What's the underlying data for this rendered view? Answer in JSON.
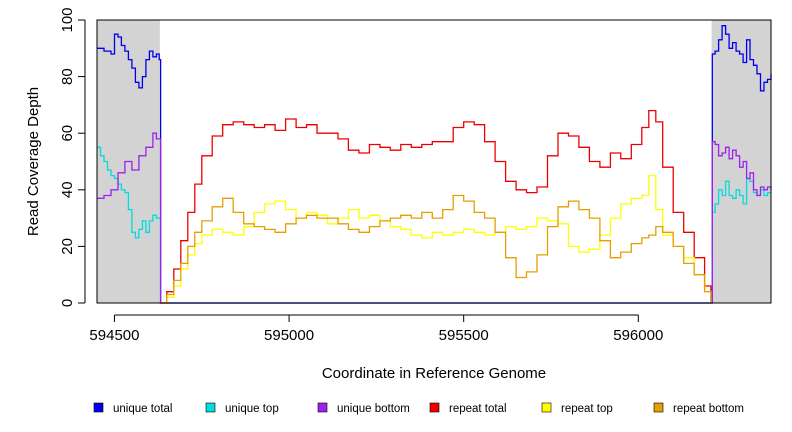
{
  "chart_data": {
    "type": "line",
    "title": "",
    "xlabel": "Coordinate in Reference Genome",
    "ylabel": "Read Coverage Depth",
    "xlim": [
      594450,
      596380
    ],
    "ylim": [
      0,
      100
    ],
    "x_ticks": [
      594500,
      595000,
      595500,
      596000
    ],
    "x_tick_labels": [
      "594500",
      "595000",
      "595500",
      "596000"
    ],
    "y_ticks": [
      0,
      20,
      40,
      60,
      80,
      100
    ],
    "y_tick_labels": [
      "0",
      "20",
      "40",
      "60",
      "80",
      "100"
    ],
    "shaded_regions": [
      [
        594450,
        594630
      ],
      [
        596210,
        596380
      ]
    ],
    "legend_position": "bottom",
    "series": [
      {
        "name": "unique total",
        "color": "#0000ee",
        "x": [
          594450,
          594470,
          594490,
          594500,
          594510,
          594520,
          594530,
          594540,
          594550,
          594560,
          594570,
          594580,
          594590,
          594600,
          594610,
          594620,
          594628,
          594632,
          596208,
          596212,
          596220,
          596230,
          596240,
          596250,
          596260,
          596270,
          596280,
          596290,
          596300,
          596310,
          596320,
          596330,
          596340,
          596350,
          596360,
          596370,
          596380
        ],
        "values": [
          90,
          89,
          88,
          95,
          94,
          91,
          89,
          86,
          83,
          78,
          76,
          80,
          86,
          89,
          87,
          88,
          86,
          0,
          0,
          88,
          89,
          93,
          98,
          95,
          90,
          92,
          89,
          88,
          85,
          93,
          86,
          84,
          81,
          75,
          78,
          79,
          81
        ]
      },
      {
        "name": "unique top",
        "color": "#00dddd",
        "x": [
          594450,
          594460,
          594470,
          594480,
          594490,
          594500,
          594510,
          594520,
          594530,
          594540,
          594550,
          594560,
          594570,
          594580,
          594590,
          594600,
          594610,
          594620,
          594628,
          594632,
          596208,
          596212,
          596220,
          596230,
          596240,
          596250,
          596260,
          596270,
          596280,
          596290,
          596300,
          596310,
          596320,
          596330,
          596340,
          596350,
          596360,
          596370,
          596380
        ],
        "values": [
          55,
          52,
          50,
          47,
          45,
          44,
          42,
          40,
          39,
          33,
          25,
          23,
          26,
          29,
          25,
          29,
          31,
          30,
          30,
          0,
          0,
          32,
          35,
          40,
          38,
          43,
          38,
          37,
          40,
          38,
          35,
          44,
          43,
          39,
          38,
          40,
          38,
          39,
          39
        ]
      },
      {
        "name": "unique bottom",
        "color": "#a020f0",
        "x": [
          594450,
          594470,
          594490,
          594510,
          594530,
          594550,
          594570,
          594590,
          594610,
          594620,
          594628,
          594632,
          596208,
          596212,
          596220,
          596230,
          596240,
          596250,
          596260,
          596270,
          596280,
          596290,
          596300,
          596310,
          596320,
          596330,
          596340,
          596350,
          596360,
          596370,
          596380
        ],
        "values": [
          37,
          38,
          40,
          46,
          50,
          47,
          52,
          55,
          60,
          58,
          58,
          0,
          0,
          57,
          56,
          52,
          53,
          55,
          51,
          54,
          52,
          48,
          50,
          44,
          46,
          40,
          38,
          41,
          40,
          41,
          40
        ]
      },
      {
        "name": "repeat total",
        "color": "#ee0000",
        "x": [
          594632,
          594650,
          594670,
          594690,
          594710,
          594730,
          594750,
          594780,
          594810,
          594840,
          594870,
          594900,
          594930,
          594960,
          594990,
          595020,
          595050,
          595080,
          595110,
          595140,
          595170,
          595200,
          595230,
          595260,
          595290,
          595320,
          595350,
          595380,
          595410,
          595440,
          595470,
          595500,
          595530,
          595560,
          595590,
          595620,
          595650,
          595680,
          595710,
          595740,
          595770,
          595800,
          595830,
          595860,
          595890,
          595920,
          595950,
          595980,
          596010,
          596030,
          596050,
          596070,
          596100,
          596130,
          596160,
          596190,
          596208
        ],
        "values": [
          0,
          4,
          12,
          22,
          32,
          42,
          52,
          59,
          63,
          64,
          63,
          62,
          63,
          61,
          65,
          62,
          63,
          60,
          60,
          58,
          54,
          53,
          56,
          55,
          54,
          56,
          55,
          56,
          57,
          57,
          62,
          64,
          63,
          57,
          50,
          43,
          40,
          39,
          41,
          52,
          60,
          59,
          55,
          50,
          48,
          53,
          51,
          56,
          62,
          68,
          64,
          48,
          32,
          25,
          16,
          6,
          0
        ]
      },
      {
        "name": "repeat top",
        "color": "#ffff00",
        "x": [
          594632,
          594650,
          594670,
          594690,
          594710,
          594730,
          594750,
          594780,
          594810,
          594840,
          594870,
          594900,
          594930,
          594960,
          594990,
          595020,
          595050,
          595080,
          595110,
          595140,
          595170,
          595200,
          595230,
          595260,
          595290,
          595320,
          595350,
          595380,
          595410,
          595440,
          595470,
          595500,
          595530,
          595560,
          595590,
          595620,
          595650,
          595680,
          595710,
          595740,
          595770,
          595800,
          595830,
          595860,
          595890,
          595920,
          595950,
          595980,
          596010,
          596030,
          596050,
          596070,
          596100,
          596130,
          596160,
          596190,
          596208
        ],
        "values": [
          0,
          2,
          6,
          12,
          17,
          21,
          24,
          26,
          25,
          24,
          27,
          32,
          35,
          36,
          33,
          30,
          32,
          31,
          28,
          30,
          33,
          30,
          31,
          29,
          27,
          26,
          24,
          23,
          25,
          24,
          25,
          26,
          25,
          24,
          25,
          27,
          26,
          27,
          30,
          29,
          28,
          20,
          18,
          19,
          24,
          30,
          35,
          37,
          38,
          45,
          33,
          24,
          20,
          16,
          10,
          4,
          0
        ]
      },
      {
        "name": "repeat bottom",
        "color": "#e69f00",
        "x": [
          594632,
          594650,
          594670,
          594690,
          594710,
          594730,
          594750,
          594780,
          594810,
          594840,
          594870,
          594900,
          594930,
          594960,
          594990,
          595020,
          595050,
          595080,
          595110,
          595140,
          595170,
          595200,
          595230,
          595260,
          595290,
          595320,
          595350,
          595380,
          595410,
          595440,
          595470,
          595500,
          595530,
          595560,
          595590,
          595620,
          595650,
          595680,
          595710,
          595740,
          595770,
          595800,
          595830,
          595860,
          595890,
          595920,
          595950,
          595980,
          596010,
          596030,
          596050,
          596070,
          596100,
          596130,
          596160,
          596190,
          596208
        ],
        "values": [
          0,
          3,
          8,
          14,
          20,
          25,
          29,
          34,
          37,
          32,
          28,
          27,
          26,
          25,
          28,
          30,
          31,
          30,
          30,
          28,
          26,
          25,
          27,
          29,
          30,
          31,
          30,
          32,
          30,
          33,
          38,
          36,
          32,
          30,
          25,
          16,
          9,
          11,
          17,
          27,
          34,
          36,
          33,
          30,
          22,
          16,
          18,
          21,
          23,
          24,
          27,
          25,
          20,
          14,
          10,
          4,
          0
        ]
      }
    ]
  }
}
